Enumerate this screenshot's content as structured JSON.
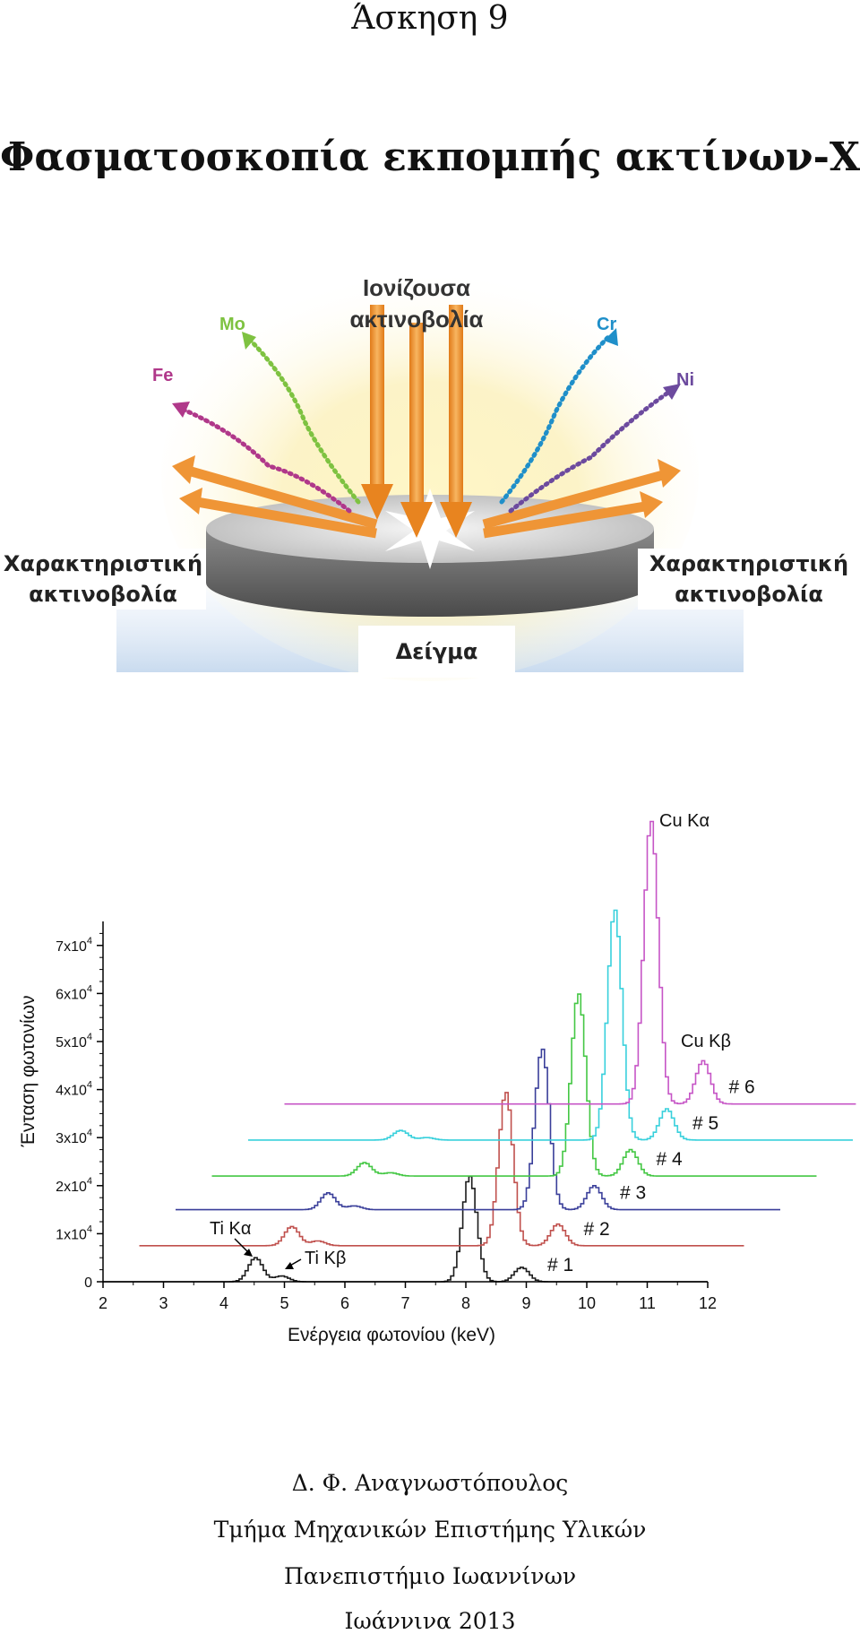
{
  "header": {
    "exercise": "Άσκηση 9",
    "title": "Φασματοσκοπία εκπομπής ακτίνων-Χ"
  },
  "illustration": {
    "incoming_label_line1": "Ιονίζουσα",
    "incoming_label_line2": "ακτινοβολία",
    "left_label_line1": "Χαρακτηριστική",
    "left_label_line2": "ακτινοβολία",
    "right_label_line1": "Χαρακτηριστική",
    "right_label_line2": "ακτινοβολία",
    "sample_label": "Δείγμα",
    "elements": [
      {
        "symbol": "Fe",
        "color": "#b0388a"
      },
      {
        "symbol": "Mo",
        "color": "#7ec241"
      },
      {
        "symbol": "Cr",
        "color": "#1f8fc9"
      },
      {
        "symbol": "Ni",
        "color": "#6c4a9e"
      }
    ]
  },
  "chart_data": {
    "type": "line",
    "xlabel": "Ενέργεια φωτονίου (keV)",
    "ylabel": "Ένταση φωτονίων",
    "xlim": [
      2,
      12
    ],
    "ylim": [
      0,
      75000
    ],
    "x_ticks": [
      "2",
      "3",
      "4",
      "5",
      "6",
      "7",
      "8",
      "9",
      "10",
      "11",
      "12"
    ],
    "y_ticks": [
      {
        "mant": "0",
        "exp": ""
      },
      {
        "mant": "1x10",
        "exp": "4"
      },
      {
        "mant": "2x10",
        "exp": "4"
      },
      {
        "mant": "3x10",
        "exp": "4"
      },
      {
        "mant": "4x10",
        "exp": "4"
      },
      {
        "mant": "5x10",
        "exp": "4"
      },
      {
        "mant": "6x10",
        "exp": "4"
      },
      {
        "mant": "7x10",
        "exp": "4"
      }
    ],
    "grid": false,
    "series": [
      {
        "name": "# 1",
        "color": "#1a1a1a",
        "x_offset": 0.0,
        "y_offset": 0,
        "x_range": [
          2,
          12
        ],
        "peaks": [
          {
            "x": 4.5,
            "h": 5000
          },
          {
            "x": 4.93,
            "h": 1200
          },
          {
            "x": 8.04,
            "h": 22000
          },
          {
            "x": 8.9,
            "h": 3000
          }
        ]
      },
      {
        "name": "# 2",
        "color": "#c0504d",
        "x_offset": 0.6,
        "y_offset": 7500,
        "x_range": [
          2.6,
          12.6
        ],
        "peaks": [
          {
            "x": 4.5,
            "h": 4000
          },
          {
            "x": 4.93,
            "h": 1000
          },
          {
            "x": 8.04,
            "h": 32000
          },
          {
            "x": 8.9,
            "h": 4500
          }
        ]
      },
      {
        "name": "# 3",
        "color": "#3a3f9a",
        "x_offset": 1.2,
        "y_offset": 15000,
        "x_range": [
          3.2,
          13.2
        ],
        "peaks": [
          {
            "x": 4.5,
            "h": 3500
          },
          {
            "x": 4.93,
            "h": 800
          },
          {
            "x": 8.04,
            "h": 33500
          },
          {
            "x": 8.9,
            "h": 5000
          }
        ]
      },
      {
        "name": "# 4",
        "color": "#44c744",
        "x_offset": 1.8,
        "y_offset": 22000,
        "x_range": [
          3.8,
          13.8
        ],
        "peaks": [
          {
            "x": 4.5,
            "h": 2800
          },
          {
            "x": 4.93,
            "h": 700
          },
          {
            "x": 8.04,
            "h": 38000
          },
          {
            "x": 8.9,
            "h": 5500
          }
        ]
      },
      {
        "name": "# 5",
        "color": "#38d0dc",
        "x_offset": 2.4,
        "y_offset": 29500,
        "x_range": [
          4.4,
          14.4
        ],
        "peaks": [
          {
            "x": 4.5,
            "h": 2000
          },
          {
            "x": 4.93,
            "h": 500
          },
          {
            "x": 8.04,
            "h": 48000
          },
          {
            "x": 8.9,
            "h": 6500
          }
        ]
      },
      {
        "name": "# 6",
        "color": "#c655c6",
        "x_offset": 3.0,
        "y_offset": 37000,
        "x_range": [
          5.0,
          15.0
        ],
        "peaks": [
          {
            "x": 8.04,
            "h": 59000
          },
          {
            "x": 8.9,
            "h": 9000
          }
        ]
      }
    ],
    "annotations": [
      "Ti Kα",
      "Ti Kβ",
      "Cu Kα",
      "Cu Kβ"
    ]
  },
  "footer": {
    "author": "Δ. Φ. Αναγνωστόπουλος",
    "department": "Τμήμα Μηχανικών Επιστήμης Υλικών",
    "university": "Πανεπιστήμιο Ιωαννίνων",
    "place_year": "Ιωάννινα 2013"
  }
}
